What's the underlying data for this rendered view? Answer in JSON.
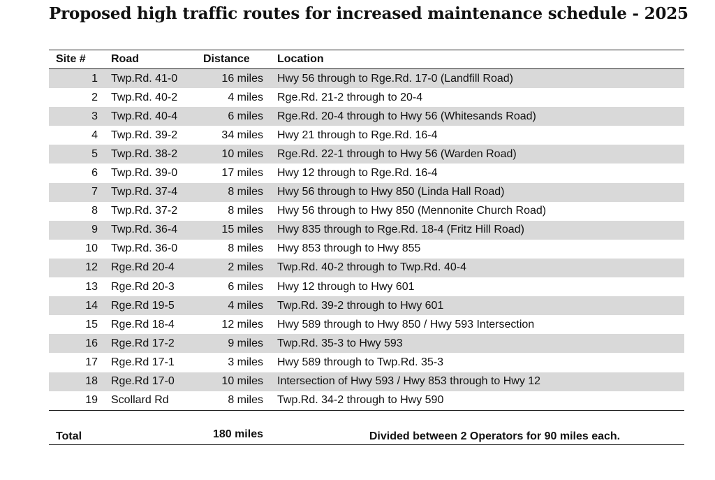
{
  "title": "Proposed high traffic routes for increased maintenance schedule - 2025",
  "headers": {
    "site": "Site #",
    "road": "Road",
    "distance": "Distance",
    "location": "Location"
  },
  "rows": [
    {
      "site": "1",
      "road": "Twp.Rd. 41-0",
      "distance": "16 miles",
      "location": "Hwy 56 through to Rge.Rd. 17-0 (Landfill Road)"
    },
    {
      "site": "2",
      "road": "Twp.Rd. 40-2",
      "distance": "4 miles",
      "location": "Rge.Rd. 21-2 through to 20-4"
    },
    {
      "site": "3",
      "road": "Twp.Rd. 40-4",
      "distance": "6 miles",
      "location": "Rge.Rd. 20-4 through to Hwy 56 (Whitesands Road)"
    },
    {
      "site": "4",
      "road": "Twp.Rd. 39-2",
      "distance": "34 miles",
      "location": "Hwy 21 through to Rge.Rd. 16-4"
    },
    {
      "site": "5",
      "road": "Twp.Rd. 38-2",
      "distance": "10 miles",
      "location": "Rge.Rd. 22-1 through to Hwy 56 (Warden Road)"
    },
    {
      "site": "6",
      "road": "Twp.Rd. 39-0",
      "distance": "17 miles",
      "location": "Hwy 12 through to Rge.Rd. 16-4"
    },
    {
      "site": "7",
      "road": "Twp.Rd. 37-4",
      "distance": "8 miles",
      "location": "Hwy 56 through to Hwy 850 (Linda Hall Road)"
    },
    {
      "site": "8",
      "road": "Twp.Rd. 37-2",
      "distance": "8 miles",
      "location": "Hwy 56 through to Hwy 850 (Mennonite Church Road)"
    },
    {
      "site": "9",
      "road": "Twp.Rd. 36-4",
      "distance": "15 miles",
      "location": "Hwy 835 through to Rge.Rd. 18-4 (Fritz Hill Road)"
    },
    {
      "site": "10",
      "road": "Twp.Rd. 36-0",
      "distance": "8 miles",
      "location": "Hwy 853 through to Hwy 855"
    },
    {
      "site": "12",
      "road": "Rge.Rd 20-4",
      "distance": "2 miles",
      "location": "Twp.Rd. 40-2 through to Twp.Rd. 40-4"
    },
    {
      "site": "13",
      "road": "Rge.Rd 20-3",
      "distance": "6 miles",
      "location": "Hwy 12 through to Hwy 601"
    },
    {
      "site": "14",
      "road": "Rge.Rd 19-5",
      "distance": "4 miles",
      "location": "Twp.Rd. 39-2 through to Hwy 601"
    },
    {
      "site": "15",
      "road": "Rge.Rd 18-4",
      "distance": "12 miles",
      "location": "Hwy 589 through to Hwy 850 / Hwy 593 Intersection"
    },
    {
      "site": "16",
      "road": "Rge.Rd 17-2",
      "distance": "9 miles",
      "location": "Twp.Rd. 35-3 to Hwy 593"
    },
    {
      "site": "17",
      "road": "Rge.Rd 17-1",
      "distance": "3 miles",
      "location": "Hwy 589 through to Twp.Rd. 35-3"
    },
    {
      "site": "18",
      "road": "Rge.Rd 17-0",
      "distance": "10 miles",
      "location": "Intersection of Hwy 593 / Hwy 853 through to Hwy 12"
    },
    {
      "site": "19",
      "road": "Scollard Rd",
      "distance": "8 miles",
      "location": "Twp.Rd. 34-2 through to Hwy 590"
    }
  ],
  "total": {
    "label": "Total",
    "distance": "180 miles",
    "note": "Divided between 2 Operators for 90 miles each."
  },
  "colors": {
    "row_shade": "#d9d9d9",
    "text": "#111111",
    "rule": "#222222"
  }
}
